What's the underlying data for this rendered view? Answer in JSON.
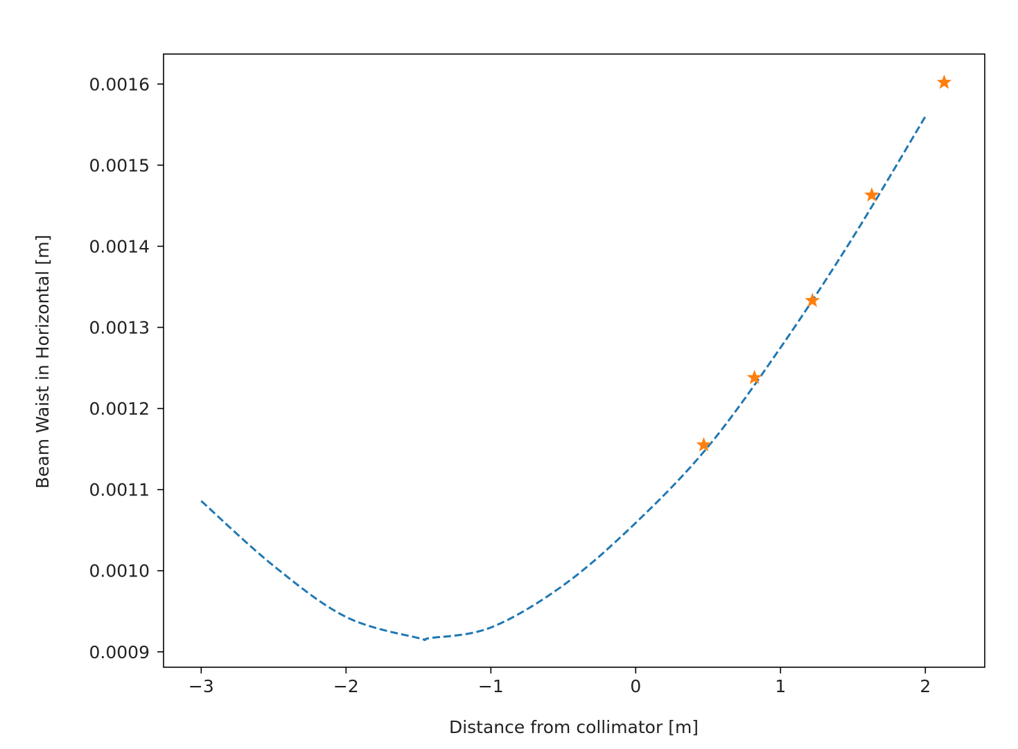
{
  "chart_data": {
    "type": "line",
    "title": "",
    "xlabel": "Distance from collimator [m]",
    "ylabel": "Beam Waist in Horizontal [m]",
    "xlim": [
      -3.26,
      2.41
    ],
    "ylim": [
      0.000881,
      0.001637
    ],
    "grid": false,
    "legend": "none",
    "x_ticks": [
      {
        "value": -3,
        "label": "−3"
      },
      {
        "value": -2,
        "label": "−2"
      },
      {
        "value": -1,
        "label": "−1"
      },
      {
        "value": 0,
        "label": "0"
      },
      {
        "value": 1,
        "label": "1"
      },
      {
        "value": 2,
        "label": "2"
      }
    ],
    "y_ticks": [
      {
        "value": 0.0009,
        "label": "0.0009"
      },
      {
        "value": 0.001,
        "label": "0.0010"
      },
      {
        "value": 0.0011,
        "label": "0.0011"
      },
      {
        "value": 0.0012,
        "label": "0.0012"
      },
      {
        "value": 0.0013,
        "label": "0.0013"
      },
      {
        "value": 0.0014,
        "label": "0.0014"
      },
      {
        "value": 0.0015,
        "label": "0.0015"
      },
      {
        "value": 0.0016,
        "label": "0.0016"
      }
    ],
    "series": [
      {
        "style": "dashed-line",
        "color": "#1f77b4",
        "x": [
          -3.0,
          -2.5,
          -2.0,
          -1.5,
          -1.42,
          -1.0,
          -0.5,
          0.0,
          0.5,
          1.0,
          1.5,
          2.0
        ],
        "y": [
          0.001086,
          0.001006,
          0.000943,
          0.000917,
          0.000917,
          0.00093,
          0.000982,
          0.001059,
          0.001153,
          0.001275,
          0.001411,
          0.00156
        ]
      },
      {
        "style": "star-markers",
        "color": "#ff7f0e",
        "x": [
          0.47,
          0.82,
          1.22,
          1.63,
          2.13
        ],
        "y": [
          0.001155,
          0.001238,
          0.001333,
          0.001463,
          0.001602
        ]
      }
    ]
  }
}
